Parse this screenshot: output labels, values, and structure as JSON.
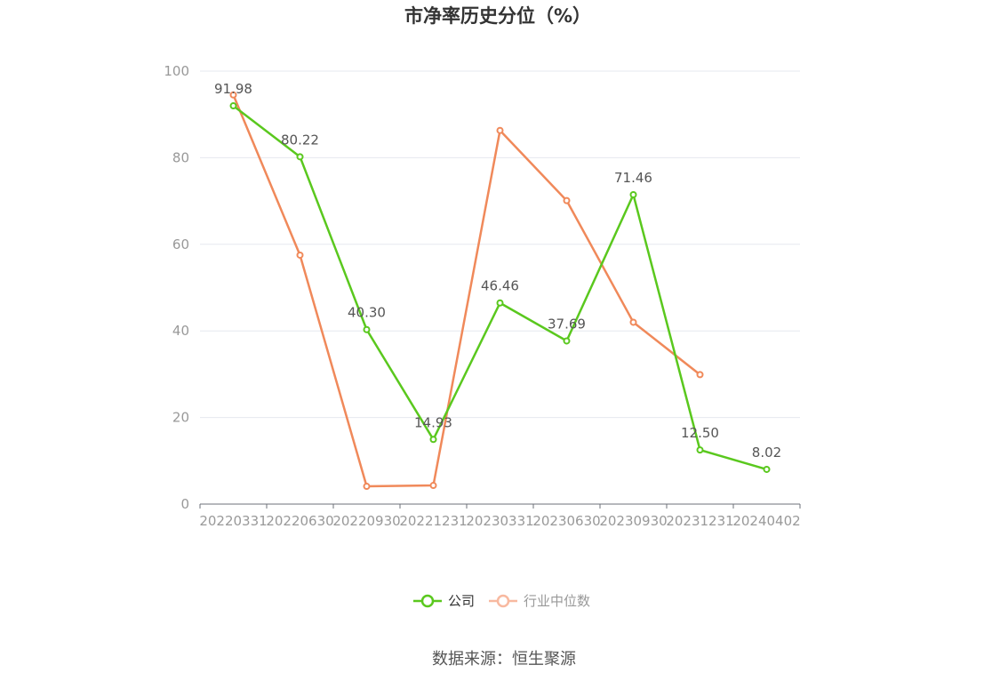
{
  "chart_data": {
    "type": "line",
    "title": "市净率历史分位（%）",
    "categories": [
      "20220331",
      "20220630",
      "20220930",
      "20221231",
      "20230331",
      "20230630",
      "20230930",
      "20231231",
      "20240402"
    ],
    "ylim": [
      0,
      100
    ],
    "yticks": [
      0,
      20,
      40,
      60,
      80,
      100
    ],
    "grid": true,
    "legend_position": "bottom",
    "series": [
      {
        "name": "公司",
        "color": "#5ac81e",
        "values": [
          91.98,
          80.22,
          40.3,
          14.93,
          46.46,
          37.69,
          71.46,
          12.5,
          8.02
        ],
        "labels": [
          "91.98",
          "80.22",
          "40.30",
          "14.93",
          "46.46",
          "37.69",
          "71.46",
          "12.50",
          "8.02"
        ]
      },
      {
        "name": "行业中位数",
        "color": "#f0895a",
        "legend_color": "#f8b9a0",
        "values": [
          94.5,
          57.5,
          4.1,
          4.3,
          86.3,
          70.1,
          42.0,
          29.9,
          null
        ]
      }
    ]
  },
  "source": "数据来源：恒生聚源"
}
